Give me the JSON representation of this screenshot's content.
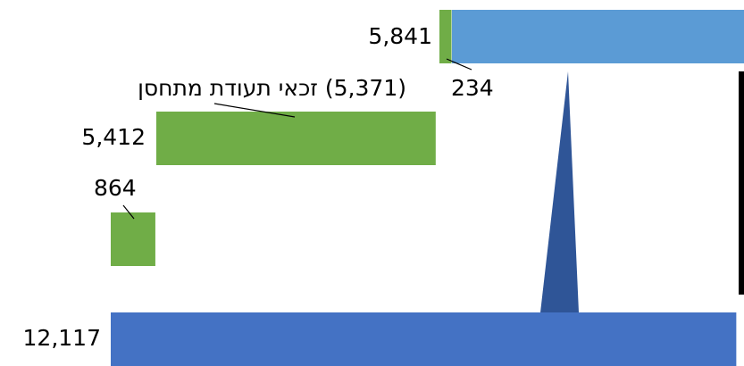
{
  "chart_data": {
    "type": "bar",
    "values": [
      5841,
      234,
      5412,
      864,
      12117
    ],
    "value_labels": [
      "5,841",
      "234",
      "5,412",
      "864",
      "12,117"
    ],
    "colors": [
      "#5b9bd5",
      "#70ad47",
      "#70ad47",
      "#70ad47",
      "#4472c4"
    ],
    "annotation": "(5,371) זכאי תעודת מתחסן"
  }
}
